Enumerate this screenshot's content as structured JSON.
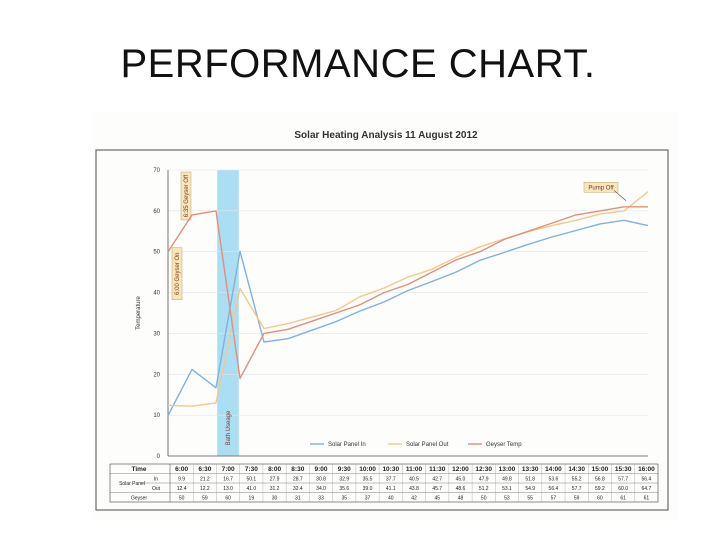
{
  "slide": {
    "title": "PERFORMANCE CHART."
  },
  "chart_data": {
    "type": "line",
    "title": "Solar Heating Analysis 11 August 2012",
    "ylabel": "Temperature",
    "xlabel": "",
    "ylim": [
      0,
      70
    ],
    "yticks": [
      "0",
      "10",
      "20",
      "30",
      "40",
      "50",
      "60",
      "70"
    ],
    "grid": true,
    "legend_position": "bottom-right",
    "x": [
      "6:00",
      "6:30",
      "7:00",
      "7:30",
      "8:00",
      "8:30",
      "9:00",
      "9:30",
      "10:00",
      "10:30",
      "11:00",
      "11:30",
      "12:00",
      "12:30",
      "13:00",
      "13:30",
      "14:00",
      "14:30",
      "15:00",
      "15:30",
      "16:00"
    ],
    "series": [
      {
        "name": "Solar Panel In",
        "color": "#7fb2dd",
        "values": [
          9.9,
          21.2,
          16.7,
          50.1,
          27.9,
          28.7,
          30.8,
          32.9,
          35.5,
          37.7,
          40.5,
          42.7,
          45.0,
          47.9,
          49.8,
          51.8,
          53.6,
          55.2,
          56.8,
          57.7,
          56.4
        ]
      },
      {
        "name": "Solar Panel Out",
        "color": "#f2c98a",
        "values": [
          12.4,
          12.2,
          13.0,
          41.0,
          31.2,
          32.4,
          34.0,
          35.6,
          39.0,
          41.1,
          43.8,
          45.7,
          48.6,
          51.2,
          53.1,
          54.9,
          56.4,
          57.7,
          59.2,
          60.0,
          64.7
        ]
      },
      {
        "name": "Geyser Temp",
        "color": "#e0907a",
        "values": [
          50,
          59,
          60,
          19,
          30,
          31,
          33,
          35,
          37,
          40,
          42,
          45,
          48,
          50,
          53,
          55,
          57,
          59,
          60,
          61,
          61
        ]
      }
    ],
    "annotations": [
      {
        "text": "6:35 Geyser Off",
        "at": "6:30"
      },
      {
        "text": "6:00 Geyser On",
        "at": "6:00"
      },
      {
        "text": "Bath Useage",
        "at": "7:00-7:30"
      },
      {
        "text": "Pump Off",
        "at": "15:30"
      }
    ],
    "table": {
      "header_label": "Time",
      "row_group_label": "Solar Panel",
      "in_label": "In",
      "out_label": "Out",
      "geyser_label": "Geyser",
      "in": [
        "9.9",
        "21.2",
        "16.7",
        "50.1",
        "27.9",
        "28.7",
        "30.8",
        "32.9",
        "35.5",
        "37.7",
        "40.5",
        "42.7",
        "45.0",
        "47.9",
        "49.8",
        "51.8",
        "53.6",
        "55.2",
        "56.8",
        "57.7",
        "56.4"
      ],
      "out": [
        "12.4",
        "12.2",
        "13.0",
        "41.0",
        "31.2",
        "32.4",
        "34.0",
        "35.6",
        "39.0",
        "41.1",
        "43.8",
        "45.7",
        "48.6",
        "51.2",
        "53.1",
        "54.9",
        "56.4",
        "57.7",
        "59.2",
        "60.0",
        "64.7"
      ],
      "geyser": [
        "50",
        "59",
        "60",
        "19",
        "30",
        "31",
        "33",
        "35",
        "37",
        "40",
        "42",
        "45",
        "48",
        "50",
        "53",
        "55",
        "57",
        "59",
        "60",
        "61",
        "61"
      ]
    }
  }
}
